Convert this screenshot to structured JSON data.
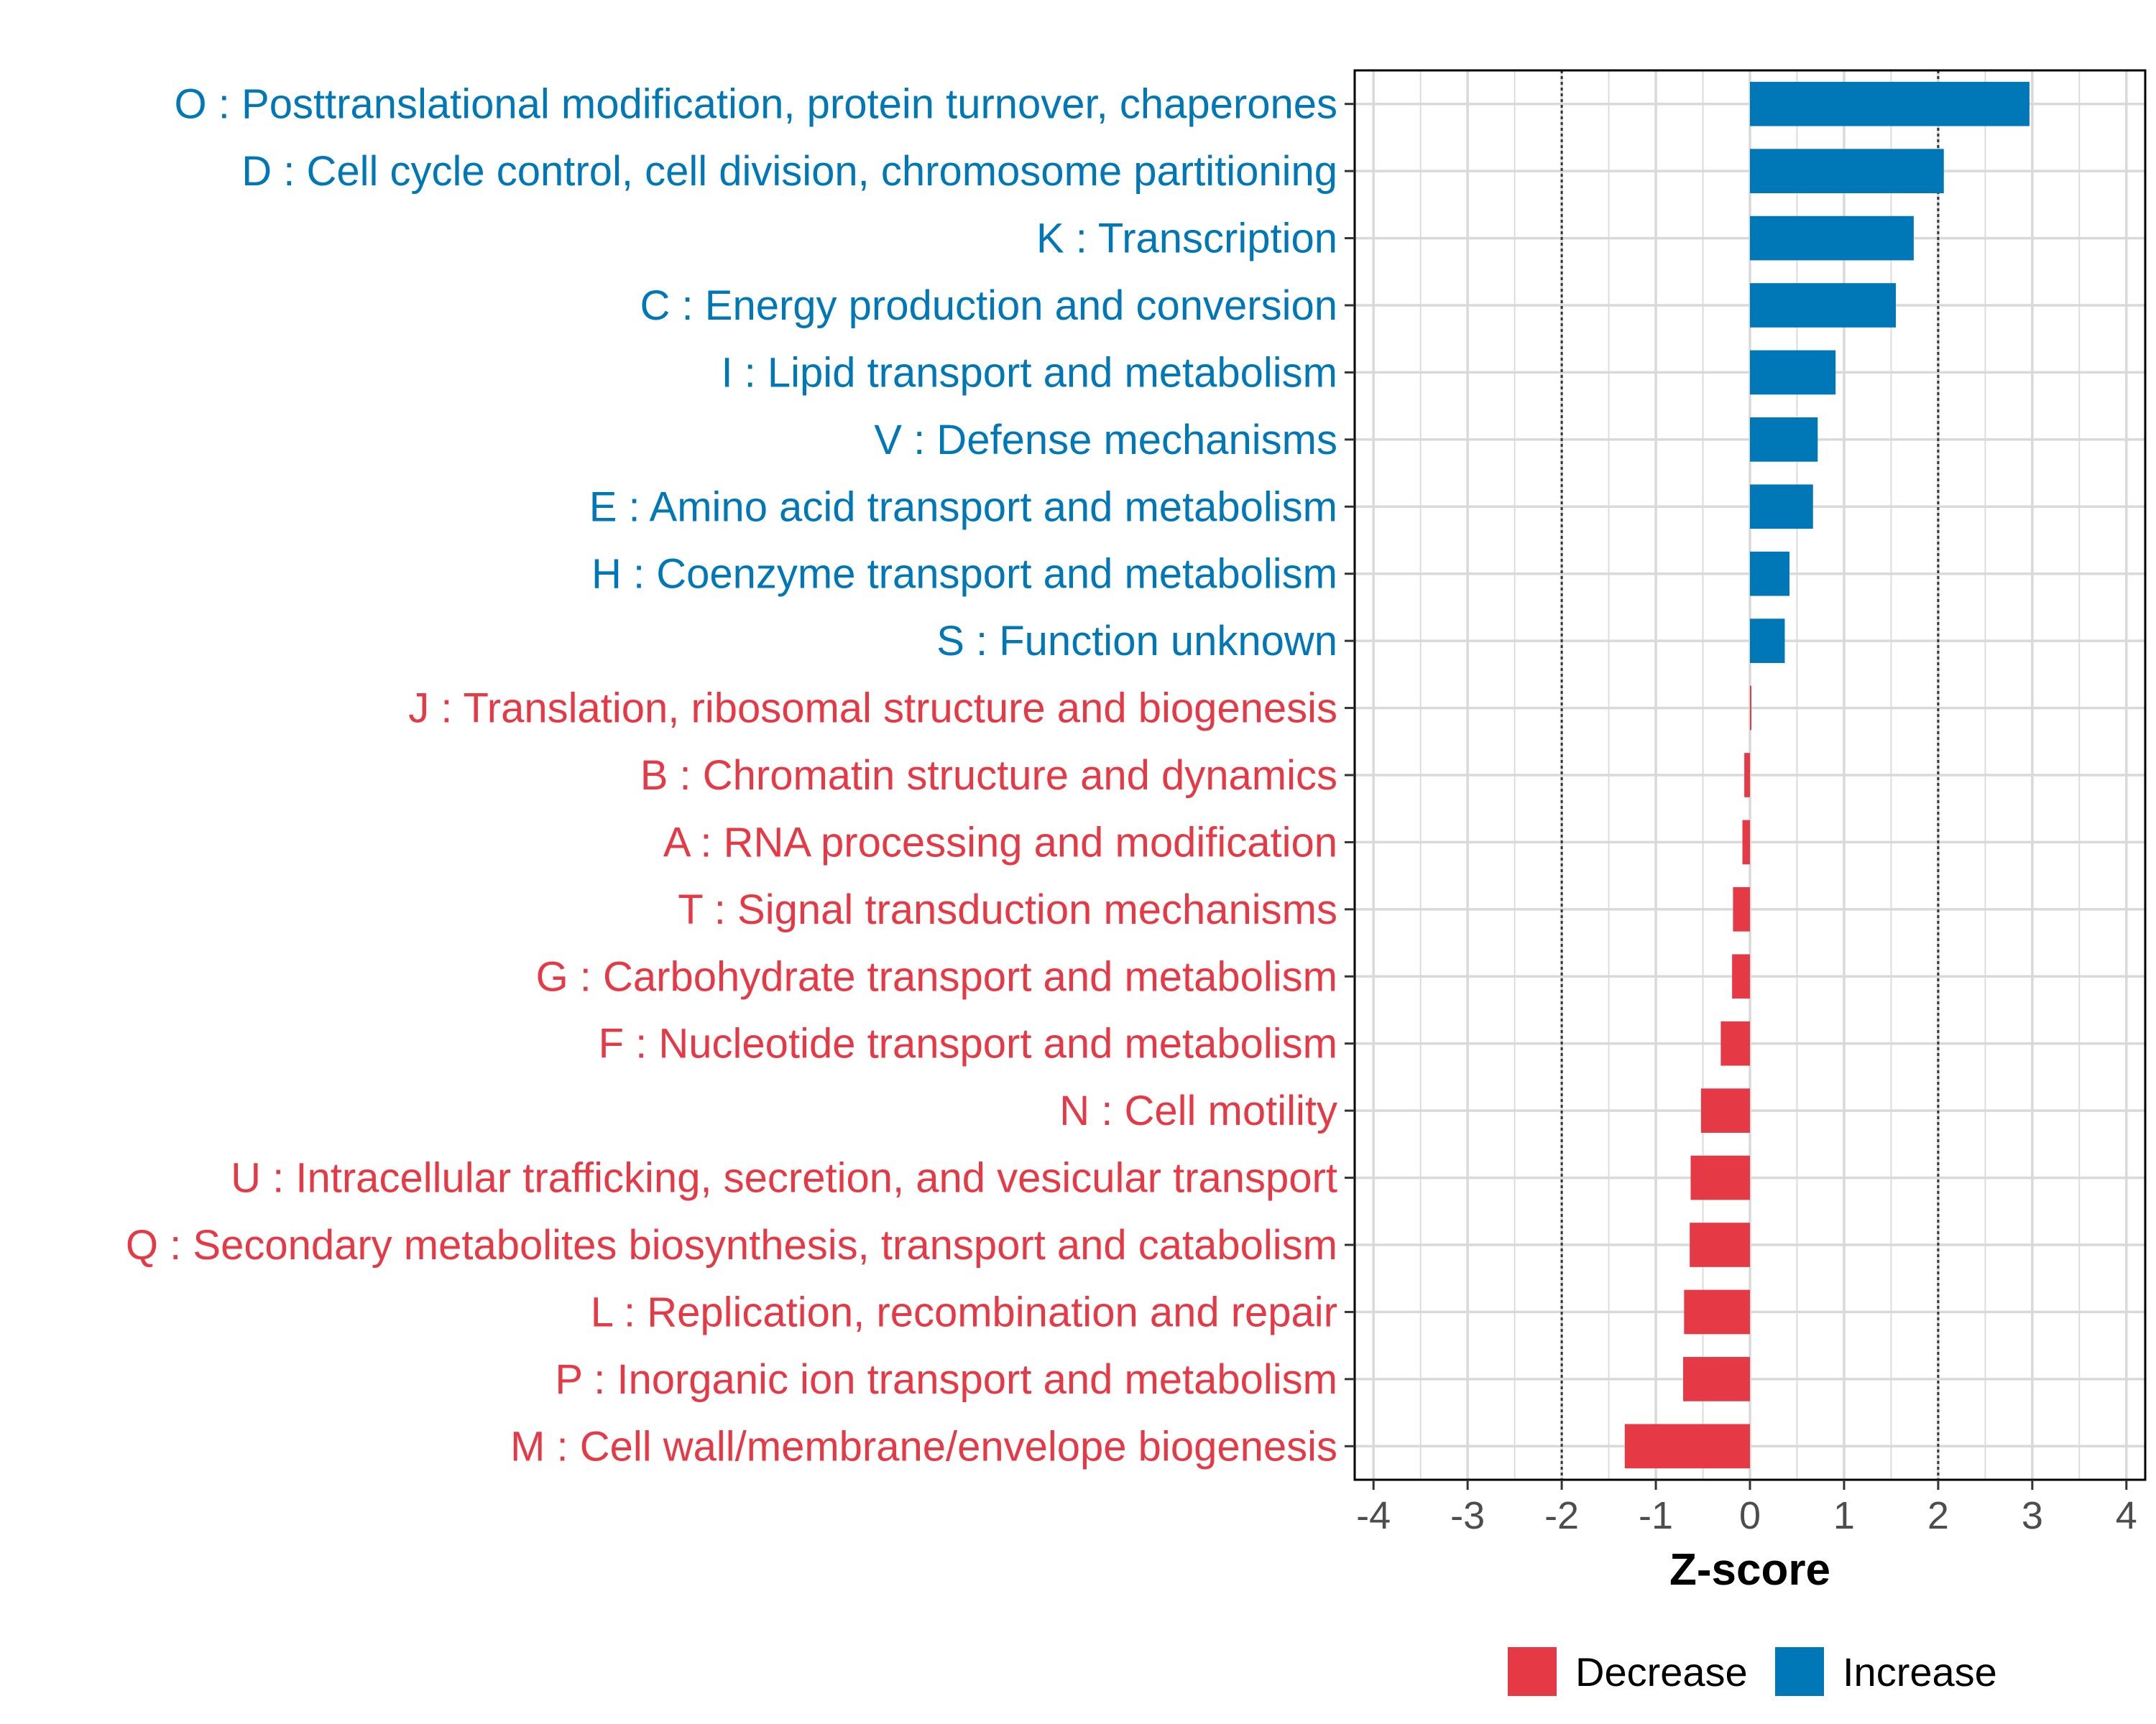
{
  "chart_data": {
    "type": "bar",
    "orientation": "horizontal",
    "title": "",
    "xlabel": "Z-score",
    "ylabel": "",
    "xlim": [
      -4.2,
      4.2
    ],
    "x_ticks": [
      -4,
      -3,
      -2,
      -1,
      0,
      1,
      2,
      3,
      4
    ],
    "x_tick_labels": [
      "-4",
      "-3",
      "-2",
      "-1",
      "0",
      "1",
      "2",
      "3",
      "4"
    ],
    "reference_lines": [
      -2,
      2
    ],
    "grid": true,
    "categories": [
      "O : Posttranslational modification, protein turnover, chaperones",
      "D : Cell cycle control, cell division, chromosome partitioning",
      "K : Transcription",
      "C : Energy production and conversion",
      "I : Lipid transport and metabolism",
      "V : Defense mechanisms",
      "E : Amino acid transport and metabolism",
      "H : Coenzyme transport and metabolism",
      "S : Function unknown",
      "J : Translation, ribosomal structure and biogenesis",
      "B : Chromatin structure and dynamics",
      "A : RNA processing and modification",
      "T : Signal transduction mechanisms",
      "G : Carbohydrate transport and metabolism",
      "F : Nucleotide transport and metabolism",
      "N : Cell motility",
      "U : Intracellular trafficking, secretion, and vesicular transport",
      "Q : Secondary metabolites biosynthesis, transport and catabolism",
      "L : Replication, recombination and repair",
      "P : Inorganic ion transport and metabolism",
      "M : Cell wall/membrane/envelope biogenesis"
    ],
    "values": [
      2.97,
      2.06,
      1.74,
      1.55,
      0.91,
      0.72,
      0.67,
      0.42,
      0.37,
      0.0,
      -0.06,
      -0.08,
      -0.18,
      -0.19,
      -0.31,
      -0.52,
      -0.63,
      -0.64,
      -0.7,
      -0.71,
      -1.33
    ],
    "groups": [
      "Increase",
      "Increase",
      "Increase",
      "Increase",
      "Increase",
      "Increase",
      "Increase",
      "Increase",
      "Increase",
      "Decrease",
      "Decrease",
      "Decrease",
      "Decrease",
      "Decrease",
      "Decrease",
      "Decrease",
      "Decrease",
      "Decrease",
      "Decrease",
      "Decrease",
      "Decrease"
    ],
    "legend": {
      "position": "bottom",
      "entries": [
        {
          "label": "Decrease",
          "color": "#E63946"
        },
        {
          "label": "Increase",
          "color": "#0077B6"
        }
      ]
    }
  },
  "colors": {
    "increase": "#0077B6",
    "decrease": "#E63946",
    "grid": "#d9d9d9",
    "axis_text": "#4d4d4d"
  }
}
